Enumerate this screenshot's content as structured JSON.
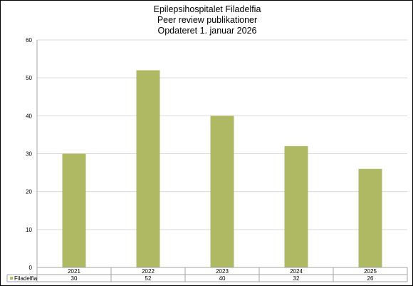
{
  "chart_data": {
    "type": "bar",
    "title": [
      "Epilepsihospitalet Filadelfia",
      "Peer review publikationer",
      "Opdateret 1. januar 2026"
    ],
    "categories": [
      "2021",
      "2022",
      "2023",
      "2024",
      "2025"
    ],
    "series": [
      {
        "name": "Filadelfia",
        "values": [
          30,
          52,
          40,
          32,
          26
        ],
        "color": "#afb964"
      }
    ],
    "ylim": [
      0,
      60
    ],
    "yticks": [
      0,
      10,
      20,
      30,
      40,
      50,
      60
    ],
    "grid": true,
    "data_table": true,
    "colors": {
      "gridline": "#d9d9d9",
      "axis": "#a6a6a6",
      "bar": "#afb964"
    }
  }
}
